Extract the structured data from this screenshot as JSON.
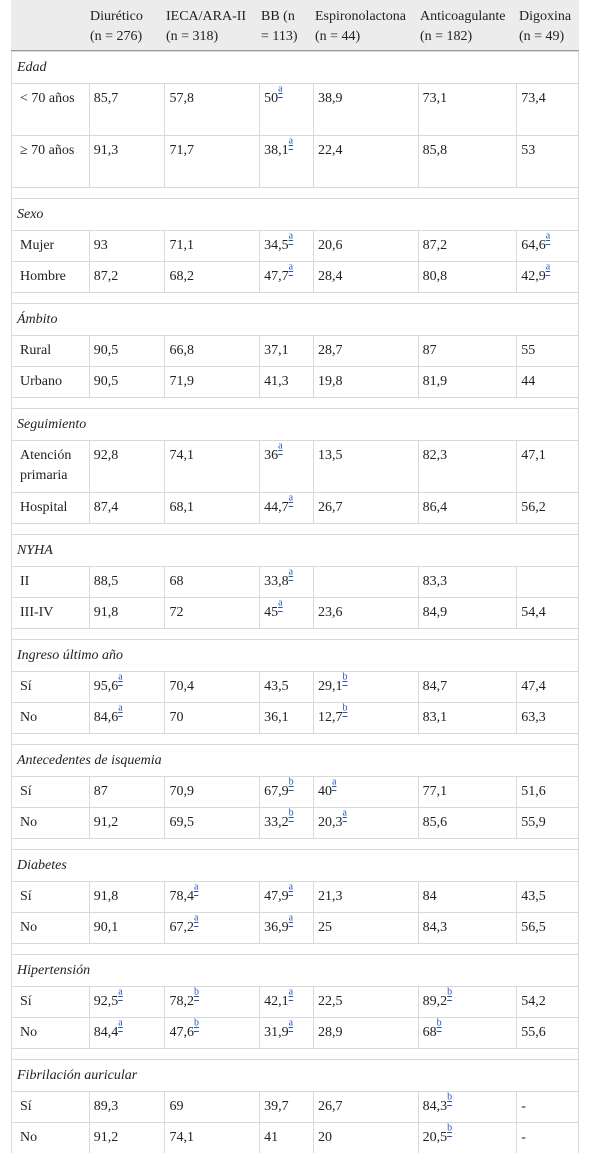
{
  "header": {
    "col1": [
      "Diurético",
      "(n = 276)"
    ],
    "col2": [
      "IECA/ARA-II",
      "(n = 318)"
    ],
    "col3": [
      "BB (n",
      "= 113)"
    ],
    "col4": [
      "Espironolactona",
      "(n = 44)"
    ],
    "col5": [
      "Anticoagulante",
      "(n = 182)"
    ],
    "col6": [
      "Digoxina",
      "(n = 49)"
    ]
  },
  "sections": [
    {
      "title": "Edad",
      "rows": [
        {
          "label": "< 70 años",
          "tall": true,
          "cells": [
            [
              "85,7",
              ""
            ],
            [
              "57,8",
              ""
            ],
            [
              "50",
              "a"
            ],
            [
              "38,9",
              ""
            ],
            [
              "73,1",
              ""
            ],
            [
              "73,4",
              ""
            ]
          ]
        },
        {
          "label": "≥ 70 años",
          "tall": true,
          "cells": [
            [
              "91,3",
              ""
            ],
            [
              "71,7",
              ""
            ],
            [
              "38,1",
              "a"
            ],
            [
              "22,4",
              ""
            ],
            [
              "85,8",
              ""
            ],
            [
              "53",
              ""
            ]
          ]
        }
      ]
    },
    {
      "title": "Sexo",
      "rows": [
        {
          "label": "Mujer",
          "cells": [
            [
              "93",
              ""
            ],
            [
              "71,1",
              ""
            ],
            [
              "34,5",
              "a"
            ],
            [
              "20,6",
              ""
            ],
            [
              "87,2",
              ""
            ],
            [
              "64,6",
              "a"
            ]
          ]
        },
        {
          "label": "Hombre",
          "cells": [
            [
              "87,2",
              ""
            ],
            [
              "68,2",
              ""
            ],
            [
              "47,7",
              "a"
            ],
            [
              "28,4",
              ""
            ],
            [
              "80,8",
              ""
            ],
            [
              "42,9",
              "a"
            ]
          ]
        }
      ]
    },
    {
      "title": "Ámbito",
      "rows": [
        {
          "label": "Rural",
          "cells": [
            [
              "90,5",
              ""
            ],
            [
              "66,8",
              ""
            ],
            [
              "37,1",
              ""
            ],
            [
              "28,7",
              ""
            ],
            [
              "87",
              ""
            ],
            [
              "55",
              ""
            ]
          ]
        },
        {
          "label": "Urbano",
          "cells": [
            [
              "90,5",
              ""
            ],
            [
              "71,9",
              ""
            ],
            [
              "41,3",
              ""
            ],
            [
              "19,8",
              ""
            ],
            [
              "81,9",
              ""
            ],
            [
              "44",
              ""
            ]
          ]
        }
      ]
    },
    {
      "title": "Seguimiento",
      "rows": [
        {
          "label": "Atención primaria",
          "tall": true,
          "cells": [
            [
              "92,8",
              ""
            ],
            [
              "74,1",
              ""
            ],
            [
              "36",
              "a"
            ],
            [
              "13,5",
              ""
            ],
            [
              "82,3",
              ""
            ],
            [
              "47,1",
              ""
            ]
          ]
        },
        {
          "label": "Hospital",
          "cells": [
            [
              "87,4",
              ""
            ],
            [
              "68,1",
              ""
            ],
            [
              "44,7",
              "a"
            ],
            [
              "26,7",
              ""
            ],
            [
              "86,4",
              ""
            ],
            [
              "56,2",
              ""
            ]
          ]
        }
      ]
    },
    {
      "title": "NYHA",
      "rows": [
        {
          "label": "II",
          "cells": [
            [
              "88,5",
              ""
            ],
            [
              "68",
              ""
            ],
            [
              "33,8",
              "a"
            ],
            [
              "",
              ""
            ],
            [
              "83,3",
              ""
            ],
            [
              "",
              ""
            ]
          ]
        },
        {
          "label": "III-IV",
          "cells": [
            [
              "91,8",
              ""
            ],
            [
              "72",
              ""
            ],
            [
              "45",
              "a"
            ],
            [
              "23,6",
              ""
            ],
            [
              "84,9",
              ""
            ],
            [
              "54,4",
              ""
            ]
          ]
        }
      ]
    },
    {
      "title": "Ingreso último año",
      "rows": [
        {
          "label": "Sí",
          "cells": [
            [
              "95,6",
              "a"
            ],
            [
              "70,4",
              ""
            ],
            [
              "43,5",
              ""
            ],
            [
              "29,1",
              "b"
            ],
            [
              "84,7",
              ""
            ],
            [
              "47,4",
              ""
            ]
          ]
        },
        {
          "label": "No",
          "cells": [
            [
              "84,6",
              "a"
            ],
            [
              "70",
              ""
            ],
            [
              "36,1",
              ""
            ],
            [
              "12,7",
              "b"
            ],
            [
              "83,1",
              ""
            ],
            [
              "63,3",
              ""
            ]
          ]
        }
      ]
    },
    {
      "title": "Antecedentes de isquemia",
      "rows": [
        {
          "label": "Sí",
          "cells": [
            [
              "87",
              ""
            ],
            [
              "70,9",
              ""
            ],
            [
              "67,9",
              "b"
            ],
            [
              "40",
              "a"
            ],
            [
              "77,1",
              ""
            ],
            [
              "51,6",
              ""
            ]
          ]
        },
        {
          "label": "No",
          "cells": [
            [
              "91,2",
              ""
            ],
            [
              "69,5",
              ""
            ],
            [
              "33,2",
              "b"
            ],
            [
              "20,3",
              "a"
            ],
            [
              "85,6",
              ""
            ],
            [
              "55,9",
              ""
            ]
          ]
        }
      ]
    },
    {
      "title": "Diabetes",
      "rows": [
        {
          "label": "Sí",
          "cells": [
            [
              "91,8",
              ""
            ],
            [
              "78,4",
              "a"
            ],
            [
              "47,9",
              "a"
            ],
            [
              "21,3",
              ""
            ],
            [
              "84",
              ""
            ],
            [
              "43,5",
              ""
            ]
          ]
        },
        {
          "label": "No",
          "cells": [
            [
              "90,1",
              ""
            ],
            [
              "67,2",
              "a"
            ],
            [
              "36,9",
              "a"
            ],
            [
              "25",
              ""
            ],
            [
              "84,3",
              ""
            ],
            [
              "56,5",
              ""
            ]
          ]
        }
      ]
    },
    {
      "title": "Hipertensión",
      "rows": [
        {
          "label": "Sí",
          "cells": [
            [
              "92,5",
              "a"
            ],
            [
              "78,2",
              "b"
            ],
            [
              "42,1",
              "a"
            ],
            [
              "22,5",
              ""
            ],
            [
              "89,2",
              "b"
            ],
            [
              "54,2",
              ""
            ]
          ]
        },
        {
          "label": "No",
          "cells": [
            [
              "84,4",
              "a"
            ],
            [
              "47,6",
              "b"
            ],
            [
              "31,9",
              "a"
            ],
            [
              "28,9",
              ""
            ],
            [
              "68",
              "b"
            ],
            [
              "55,6",
              ""
            ]
          ]
        }
      ]
    },
    {
      "title": "Fibrilación auricular",
      "rows": [
        {
          "label": "Sí",
          "cells": [
            [
              "89,3",
              ""
            ],
            [
              "69",
              ""
            ],
            [
              "39,7",
              ""
            ],
            [
              "26,7",
              ""
            ],
            [
              "84,3",
              "b"
            ],
            [
              "-",
              ""
            ]
          ]
        },
        {
          "label": "No",
          "cells": [
            [
              "91,2",
              ""
            ],
            [
              "74,1",
              ""
            ],
            [
              "41",
              ""
            ],
            [
              "20",
              ""
            ],
            [
              "20,5",
              "b"
            ],
            [
              "-",
              ""
            ]
          ]
        }
      ]
    }
  ]
}
